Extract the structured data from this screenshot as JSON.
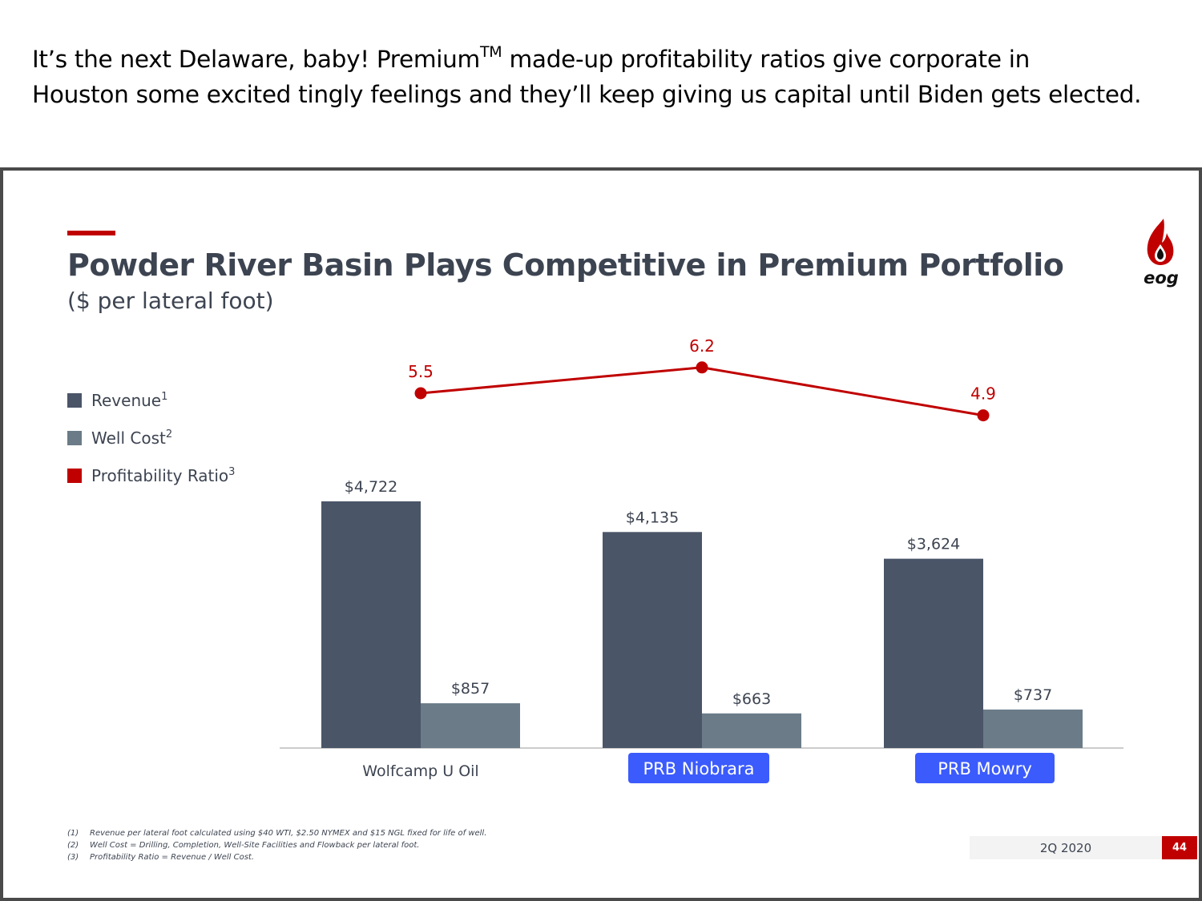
{
  "caption": {
    "line1_before": "It’s the next Delaware, baby! Premium",
    "line1_sup": "TM",
    "line1_after": " made-up profitability ratios give corporate in",
    "line2": "Houston some excited tingly feelings and they’ll keep giving us capital until Biden gets elected."
  },
  "slide": {
    "title": "Powder River Basin Plays Competitive in Premium Portfolio",
    "subtitle": "($ per lateral foot)",
    "logo_text": "eog",
    "logo_icon": "flame-drop-icon",
    "period": "2Q 2020",
    "page_number": "44"
  },
  "legend": [
    {
      "label": "Revenue",
      "sup": "1",
      "color": "#4a5568"
    },
    {
      "label": "Well Cost",
      "sup": "2",
      "color": "#6b7b88"
    },
    {
      "label": "Profitability Ratio",
      "sup": "3",
      "color": "#c00000"
    }
  ],
  "footnotes": [
    {
      "num": "(1)",
      "text": "Revenue per lateral foot calculated using $40 WTI, $2.50 NYMEX and $15 NGL fixed for life of well."
    },
    {
      "num": "(2)",
      "text": "Well Cost = Drilling, Completion, Well-Site Facilities and Flowback per lateral foot."
    },
    {
      "num": "(3)",
      "text": "Profitability Ratio = Revenue / Well Cost."
    }
  ],
  "chart_data": {
    "type": "bar",
    "categories": [
      "Wolfcamp U Oil",
      "PRB Niobrara",
      "PRB Mowry"
    ],
    "highlighted_categories": [
      "PRB Niobrara",
      "PRB Mowry"
    ],
    "highlight_color": "#3b5bfd",
    "series": [
      {
        "name": "Revenue",
        "values": [
          4722,
          4135,
          3624
        ],
        "labels": [
          "$4,722",
          "$4,135",
          "$3,624"
        ],
        "color": "#4a5568"
      },
      {
        "name": "Well Cost",
        "values": [
          857,
          663,
          737
        ],
        "labels": [
          "$857",
          "$663",
          "$737"
        ],
        "color": "#6b7b88"
      }
    ],
    "line_series": {
      "name": "Profitability Ratio",
      "values": [
        5.5,
        6.2,
        4.9
      ],
      "labels": [
        "5.5",
        "6.2",
        "4.9"
      ],
      "color": "#c00000"
    },
    "ylim": [
      0,
      5000
    ],
    "grid": false,
    "legend_position": "left"
  }
}
